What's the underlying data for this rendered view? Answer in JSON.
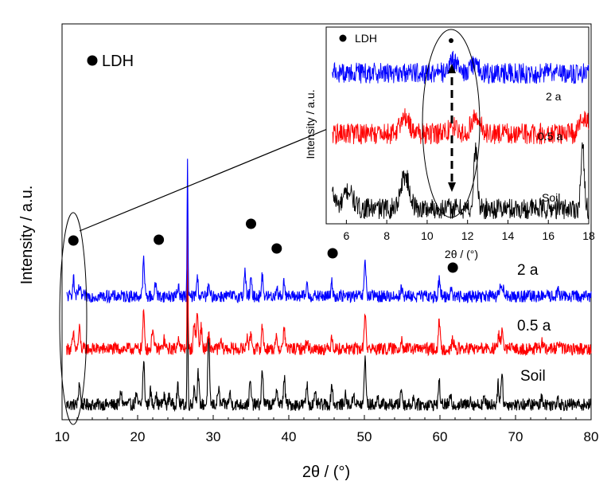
{
  "chart_data": [
    {
      "type": "line",
      "role": "main",
      "xlabel": "2θ / (°)",
      "ylabel": "Intensity / a.u.",
      "xlim": [
        10,
        80
      ],
      "xticks": [
        10,
        20,
        30,
        40,
        50,
        60,
        70,
        80
      ],
      "legend": {
        "marker": "●",
        "label": "LDH",
        "placement": "top-left"
      },
      "ldh_peak_positions": [
        11.5,
        22.8,
        35.0,
        38.4,
        45.8,
        61.7
      ],
      "series": [
        {
          "name": "Soil",
          "color": "#000000",
          "baseline": 0,
          "peaks": [
            [
              12.3,
              1.0
            ],
            [
              17.8,
              0.6
            ],
            [
              19.8,
              0.4
            ],
            [
              20.8,
              1.9
            ],
            [
              21.7,
              0.6
            ],
            [
              22.4,
              0.5
            ],
            [
              23.5,
              0.35
            ],
            [
              24.2,
              0.4
            ],
            [
              25.3,
              0.8
            ],
            [
              26.6,
              6.0
            ],
            [
              27.5,
              0.8
            ],
            [
              28.0,
              1.4
            ],
            [
              29.4,
              3.0
            ],
            [
              30.7,
              0.7
            ],
            [
              32.2,
              0.5
            ],
            [
              34.9,
              1.0
            ],
            [
              36.5,
              1.5
            ],
            [
              38.4,
              0.8
            ],
            [
              39.4,
              1.2
            ],
            [
              42.4,
              0.9
            ],
            [
              43.5,
              0.4
            ],
            [
              45.7,
              0.9
            ],
            [
              47.5,
              0.4
            ],
            [
              48.6,
              0.5
            ],
            [
              50.1,
              2.1
            ],
            [
              51.8,
              0.3
            ],
            [
              54.9,
              0.7
            ],
            [
              56.5,
              0.3
            ],
            [
              59.9,
              1.0
            ],
            [
              61.4,
              0.3
            ],
            [
              64.0,
              0.3
            ],
            [
              65.8,
              0.3
            ],
            [
              67.7,
              0.9
            ],
            [
              68.2,
              1.4
            ],
            [
              73.5,
              0.4
            ],
            [
              75.6,
              0.35
            ]
          ]
        },
        {
          "name": "0.5 a",
          "color": "#ff0000",
          "baseline": 1,
          "peaks": [
            [
              11.5,
              0.6
            ],
            [
              12.3,
              0.9
            ],
            [
              20.8,
              1.6
            ],
            [
              22.0,
              1.0
            ],
            [
              23.5,
              0.4
            ],
            [
              25.4,
              0.6
            ],
            [
              26.6,
              6.0
            ],
            [
              27.5,
              1.2
            ],
            [
              27.9,
              1.6
            ],
            [
              28.4,
              1.0
            ],
            [
              29.4,
              0.6
            ],
            [
              31.0,
              0.3
            ],
            [
              34.5,
              0.6
            ],
            [
              35.0,
              0.7
            ],
            [
              36.5,
              1.0
            ],
            [
              38.4,
              0.5
            ],
            [
              39.4,
              1.0
            ],
            [
              42.4,
              0.4
            ],
            [
              45.7,
              0.6
            ],
            [
              50.1,
              1.7
            ],
            [
              54.9,
              0.5
            ],
            [
              59.9,
              1.2
            ],
            [
              61.7,
              0.4
            ],
            [
              67.8,
              0.6
            ],
            [
              68.2,
              0.9
            ],
            [
              73.5,
              0.3
            ],
            [
              75.7,
              0.3
            ]
          ]
        },
        {
          "name": "2 a",
          "color": "#0000ff",
          "baseline": 2,
          "peaks": [
            [
              11.5,
              0.8
            ],
            [
              12.3,
              0.4
            ],
            [
              20.8,
              1.6
            ],
            [
              22.4,
              0.6
            ],
            [
              25.4,
              0.5
            ],
            [
              26.6,
              6.0
            ],
            [
              27.9,
              0.8
            ],
            [
              29.4,
              0.4
            ],
            [
              34.2,
              1.1
            ],
            [
              35.0,
              0.7
            ],
            [
              36.5,
              0.9
            ],
            [
              38.4,
              0.4
            ],
            [
              39.4,
              0.7
            ],
            [
              42.4,
              0.5
            ],
            [
              45.7,
              0.6
            ],
            [
              50.1,
              1.6
            ],
            [
              54.9,
              0.4
            ],
            [
              59.9,
              0.7
            ],
            [
              61.5,
              0.4
            ],
            [
              68.0,
              0.5
            ],
            [
              68.4,
              0.4
            ],
            [
              75.7,
              0.3
            ]
          ]
        }
      ]
    },
    {
      "type": "line",
      "role": "inset",
      "xlabel": "2θ / (°)",
      "ylabel": "Intensity / a.u.",
      "xlim": [
        5,
        18
      ],
      "xticks": [
        6,
        8,
        10,
        12,
        14,
        16,
        18
      ],
      "legend": {
        "marker": "●",
        "label": "LDH",
        "placement": "top-left"
      },
      "ldh_peak_positions": [
        11.3
      ],
      "series": [
        {
          "name": "Soil",
          "color": "#000000",
          "baseline": 0,
          "peaks": [
            [
              5.2,
              0.6
            ],
            [
              6.1,
              0.6
            ],
            [
              8.9,
              1.1
            ],
            [
              12.4,
              2.0
            ],
            [
              17.7,
              2.0
            ]
          ]
        },
        {
          "name": "0.5 a",
          "color": "#ff0000",
          "baseline": 1,
          "peaks": [
            [
              8.9,
              0.6
            ],
            [
              11.3,
              0.25
            ],
            [
              12.4,
              0.6
            ],
            [
              17.8,
              0.5
            ]
          ]
        },
        {
          "name": "2 a",
          "color": "#0000ff",
          "baseline": 2,
          "peaks": [
            [
              11.3,
              0.4
            ],
            [
              12.4,
              0.3
            ]
          ]
        }
      ]
    }
  ],
  "labels": {
    "legend_main": "LDH",
    "legend_inset": "LDH",
    "xlabel_main": "2θ / (°)",
    "ylabel_main": "Intensity / a.u.",
    "xlabel_inset": "2θ / (°)",
    "ylabel_inset": "Intensity / a.u.",
    "series_main": [
      "2 a",
      "0.5 a",
      "Soil"
    ],
    "series_inset": [
      "2 a",
      "0.5 a",
      "Soil"
    ]
  },
  "colors": {
    "soil": "#000000",
    "half_year": "#ff0000",
    "two_year": "#0000ff",
    "marker": "#000000"
  }
}
